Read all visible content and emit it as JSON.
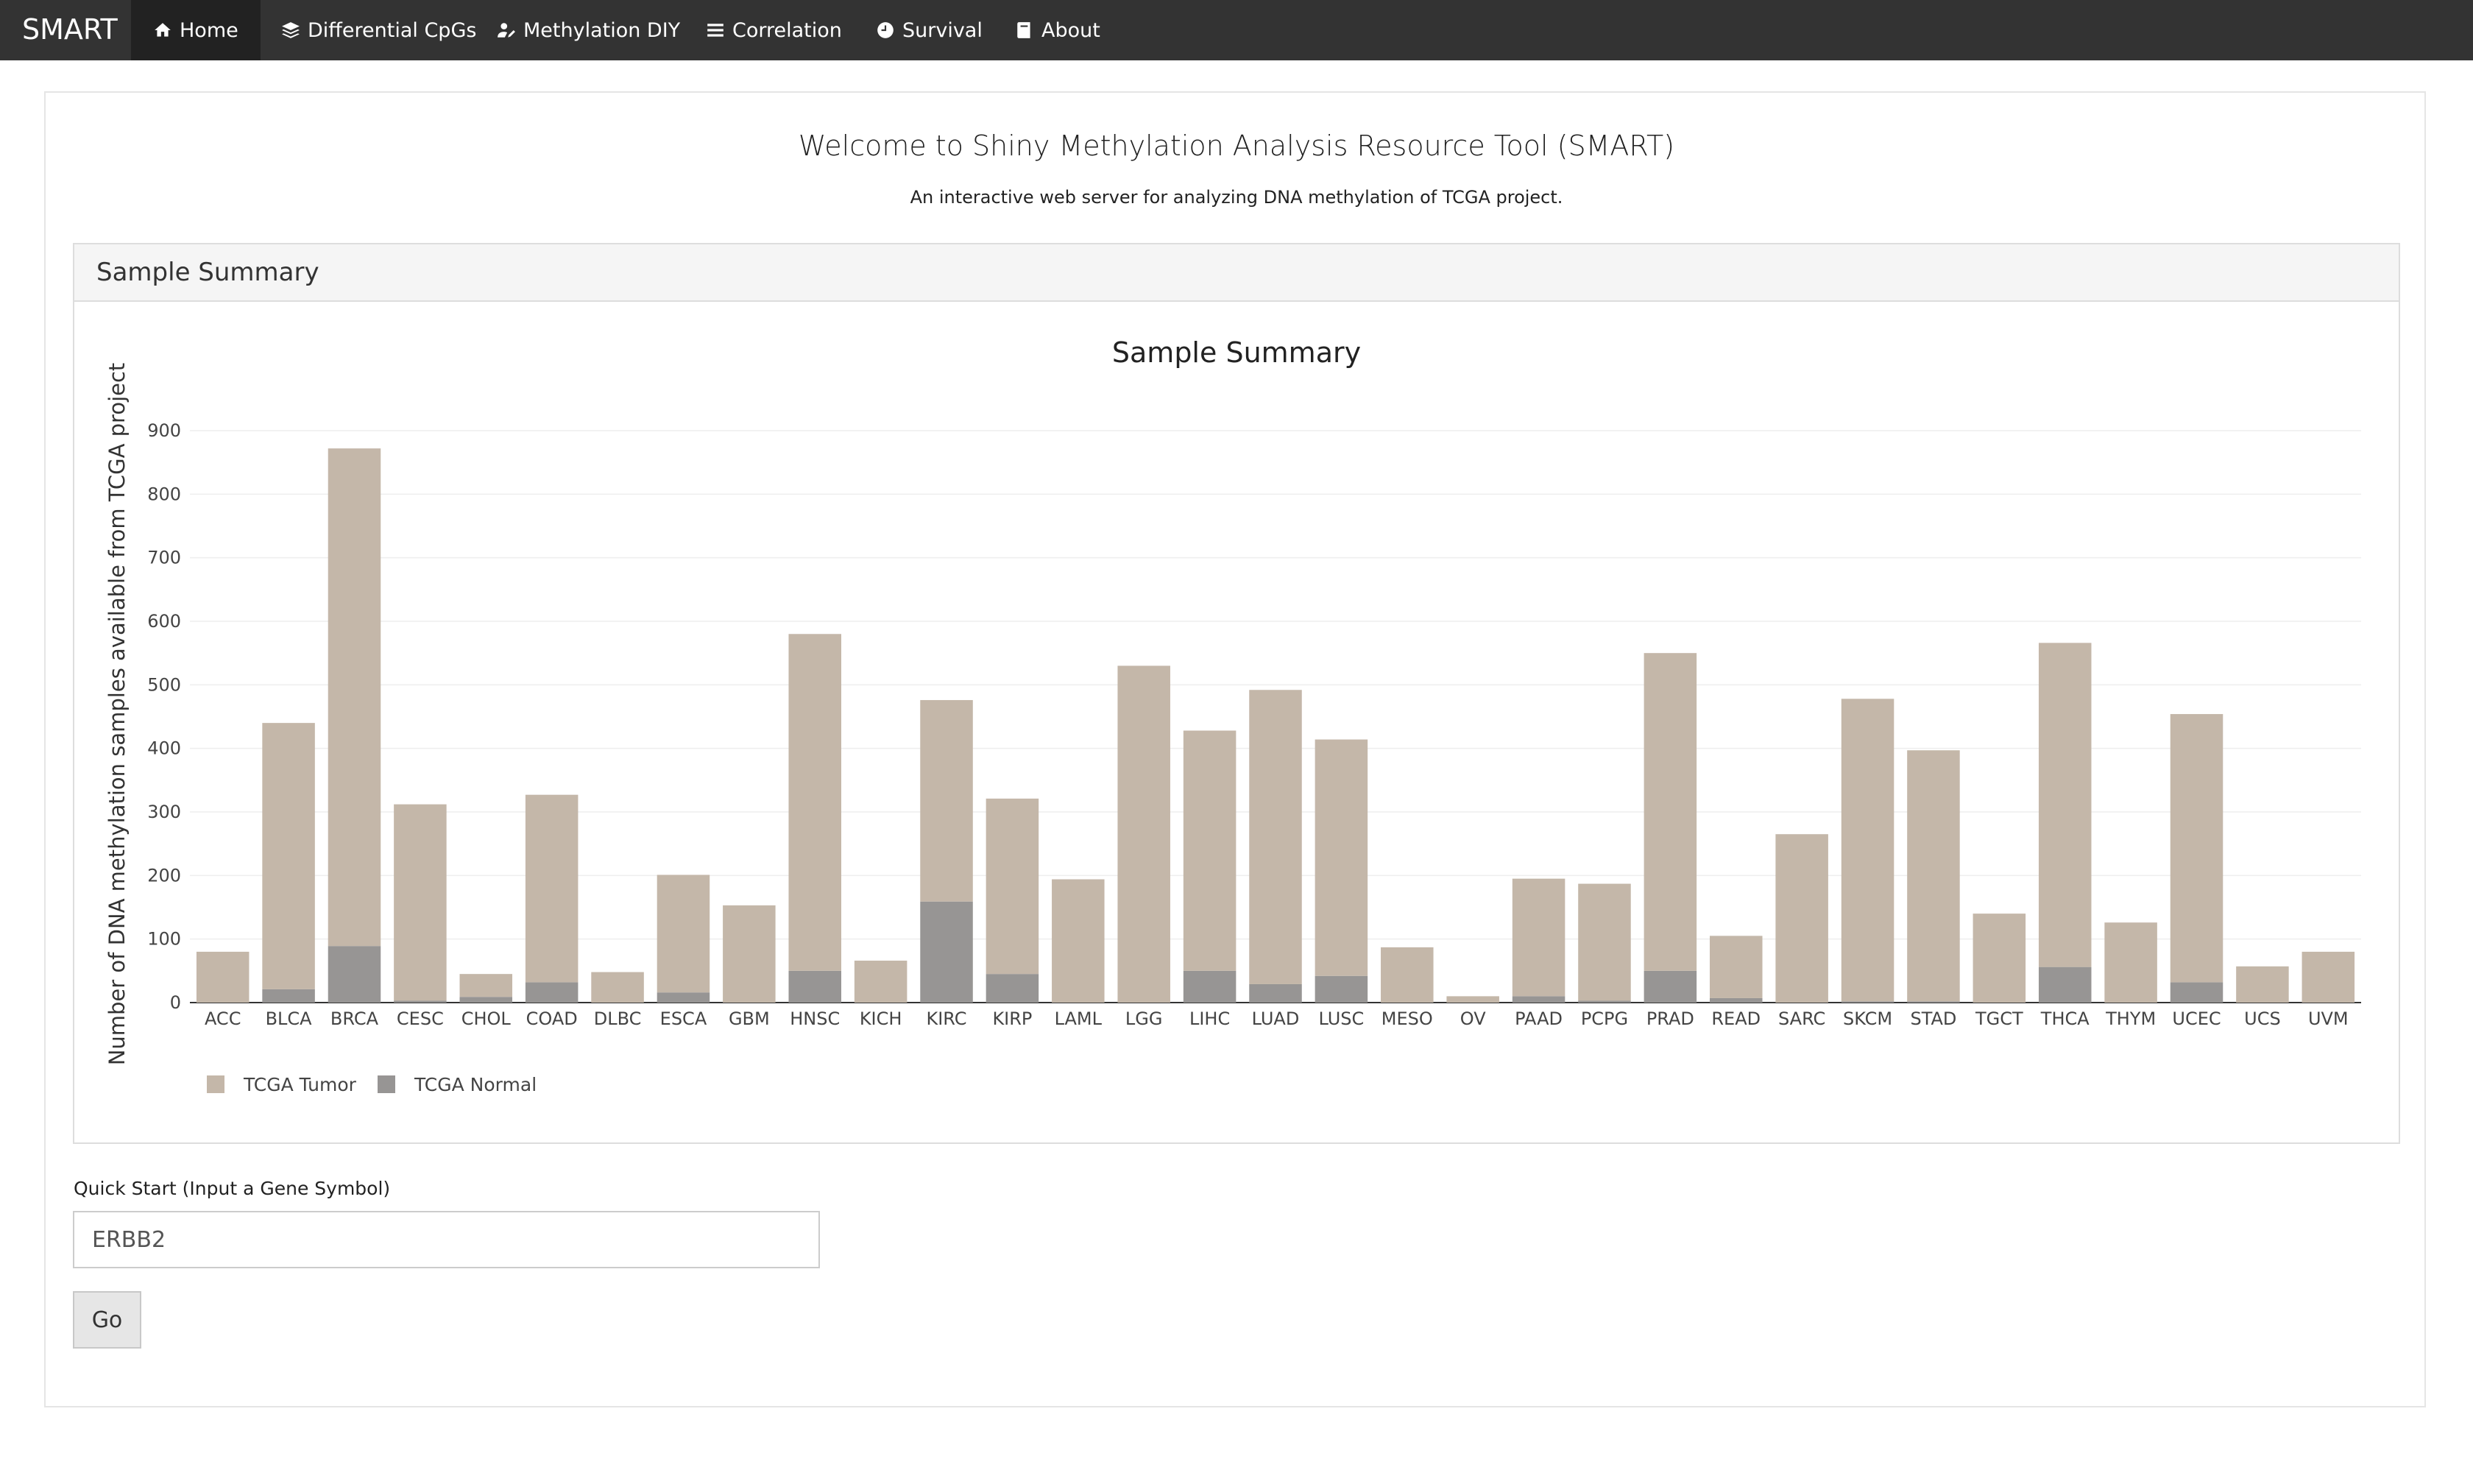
{
  "navbar": {
    "brand": "SMART",
    "items": [
      {
        "label": "Home",
        "icon": "home-icon",
        "active": true
      },
      {
        "label": "Differential CpGs",
        "icon": "layers-icon",
        "active": false
      },
      {
        "label": "Methylation DIY",
        "icon": "user-edit-icon",
        "active": false
      },
      {
        "label": "Correlation",
        "icon": "bars-icon",
        "active": false
      },
      {
        "label": "Survival",
        "icon": "clock-icon",
        "active": false
      },
      {
        "label": "About",
        "icon": "book-icon",
        "active": false
      }
    ]
  },
  "main": {
    "title": "Welcome to Shiny Methylation Analysis Resource Tool (SMART)",
    "subtitle": "An interactive web server for analyzing DNA methylation of TCGA project."
  },
  "panel": {
    "title": "Sample Summary"
  },
  "quick_start": {
    "label": "Quick Start (Input a Gene Symbol)",
    "value": "ERBB2",
    "button_label": "Go"
  },
  "colors": {
    "tumor": "#c4b7a9",
    "normal": "#979594",
    "navbar": "#333333"
  },
  "chart_data": {
    "type": "bar",
    "stacked": true,
    "title": "Sample Summary",
    "ylabel": "Number of DNA methylation samples available from TCGA project",
    "xlabel": "",
    "ylim": [
      0,
      900
    ],
    "yticks": [
      0,
      100,
      200,
      300,
      400,
      500,
      600,
      700,
      800,
      900
    ],
    "grid": true,
    "legend": "bottom-left",
    "categories": [
      "ACC",
      "BLCA",
      "BRCA",
      "CESC",
      "CHOL",
      "COAD",
      "DLBC",
      "ESCA",
      "GBM",
      "HNSC",
      "KICH",
      "KIRC",
      "KIRP",
      "LAML",
      "LGG",
      "LIHC",
      "LUAD",
      "LUSC",
      "MESO",
      "OV",
      "PAAD",
      "PCPG",
      "PRAD",
      "READ",
      "SARC",
      "SKCM",
      "STAD",
      "TGCT",
      "THCA",
      "THYM",
      "UCEC",
      "UCS",
      "UVM"
    ],
    "series": [
      {
        "name": "TCGA Tumor",
        "values": [
          80,
          419,
          783,
          309,
          36,
          295,
          48,
          185,
          153,
          530,
          66,
          317,
          276,
          194,
          530,
          378,
          463,
          372,
          87,
          10,
          185,
          184,
          500,
          98,
          265,
          476,
          395,
          140,
          510,
          126,
          422,
          57,
          80
        ]
      },
      {
        "name": "TCGA Normal",
        "values": [
          0,
          21,
          89,
          3,
          9,
          32,
          0,
          16,
          0,
          50,
          0,
          159,
          45,
          0,
          0,
          50,
          29,
          42,
          0,
          0,
          10,
          3,
          50,
          7,
          0,
          2,
          2,
          0,
          56,
          0,
          32,
          0,
          0
        ]
      }
    ]
  }
}
